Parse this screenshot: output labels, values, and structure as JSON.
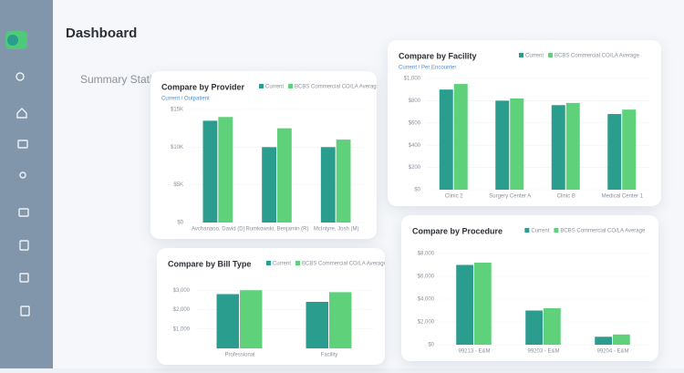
{
  "page": {
    "title": "Dashboard",
    "section": "Summary Statistics"
  },
  "chart_data": [
    {
      "type": "bar",
      "title": "Compare by Provider",
      "subtitle": "Current / Outpatient",
      "categories": [
        "Avchanaoo, David (D)",
        "Rumkowski, Benjamin (R)",
        "McIntyre, Josh (M)"
      ],
      "series": [
        {
          "name": "Current",
          "color": "#2a9d8f",
          "values": [
            13500,
            10000,
            10000
          ]
        },
        {
          "name": "BCBS Commercial CO/LA Average",
          "color": "#5fd17a",
          "values": [
            14000,
            12500,
            11000
          ]
        }
      ],
      "ylim": [
        0,
        15000
      ],
      "yticks": [
        {
          "value": 0,
          "label": "$0"
        },
        {
          "value": 5000,
          "label": "$5K"
        },
        {
          "value": 10000,
          "label": "$10K"
        },
        {
          "value": 15000,
          "label": "$15K"
        }
      ]
    },
    {
      "type": "bar",
      "title": "Compare by Facility",
      "subtitle": "Current / Per Encounter",
      "categories": [
        "Clinic 2",
        "Surgery Center A",
        "Clinic B",
        "Medical Center 1"
      ],
      "series": [
        {
          "name": "Current",
          "color": "#2a9d8f",
          "values": [
            900,
            800,
            760,
            680
          ]
        },
        {
          "name": "BCBS Commercial CO/LA Average",
          "color": "#5fd17a",
          "values": [
            950,
            820,
            780,
            720
          ]
        }
      ],
      "ylim": [
        0,
        1000
      ],
      "yticks": [
        {
          "value": 0,
          "label": "$0"
        },
        {
          "value": 200,
          "label": "$200"
        },
        {
          "value": 400,
          "label": "$400"
        },
        {
          "value": 600,
          "label": "$600"
        },
        {
          "value": 800,
          "label": "$800"
        },
        {
          "value": 1000,
          "label": "$1,000"
        }
      ]
    },
    {
      "type": "bar",
      "title": "Compare by Bill Type",
      "categories": [
        "Professional",
        "Facility"
      ],
      "series": [
        {
          "name": "Current",
          "color": "#2a9d8f",
          "values": [
            2800,
            2400
          ]
        },
        {
          "name": "BCBS Commercial CO/LA Average",
          "color": "#5fd17a",
          "values": [
            3000,
            2900
          ]
        }
      ],
      "ylim": [
        0,
        3200
      ],
      "yticks": [
        {
          "value": 1000,
          "label": "$1,000"
        },
        {
          "value": 2000,
          "label": "$2,000"
        },
        {
          "value": 3000,
          "label": "$3,000"
        }
      ]
    },
    {
      "type": "bar",
      "title": "Compare by Procedure",
      "categories": [
        "99213 - E&M",
        "99203 - E&M",
        "99204 - E&M"
      ],
      "series": [
        {
          "name": "Current",
          "color": "#2a9d8f",
          "values": [
            7000,
            3000,
            700
          ]
        },
        {
          "name": "BCBS Commercial CO/LA Average",
          "color": "#5fd17a",
          "values": [
            7200,
            3200,
            900
          ]
        }
      ],
      "ylim": [
        0,
        8000
      ],
      "yticks": [
        {
          "value": 0,
          "label": "$0"
        },
        {
          "value": 2000,
          "label": "$2,000"
        },
        {
          "value": 4000,
          "label": "$4,000"
        },
        {
          "value": 6000,
          "label": "$6,000"
        },
        {
          "value": 8000,
          "label": "$8,000"
        }
      ]
    }
  ]
}
